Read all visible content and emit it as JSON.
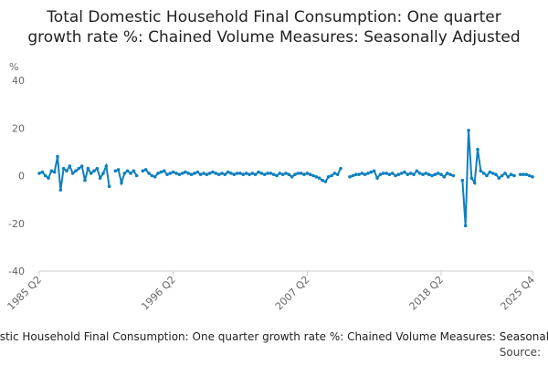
{
  "chart_data": {
    "type": "line",
    "title": "Total Domestic Household Final Consumption: One quarter growth rate %: Chained Volume Measures: Seasonally Adjusted",
    "y_label": "%",
    "footer": "Total Domestic Household Final Consumption: One quarter growth rate %: Chained Volume Measures: Seasonally Adjusted",
    "source": "Source:",
    "categories": [
      "1985 Q2",
      null,
      null,
      null,
      null,
      null,
      null,
      null,
      null,
      null,
      null,
      null,
      null,
      null,
      null,
      null,
      null,
      null,
      null,
      null,
      null,
      null,
      null,
      null,
      null,
      null,
      null,
      null,
      null,
      null,
      null,
      null,
      null,
      null,
      null,
      null,
      null,
      null,
      null,
      null,
      null,
      null,
      null,
      null,
      "1996 Q2",
      null,
      null,
      null,
      null,
      null,
      null,
      null,
      null,
      null,
      null,
      null,
      null,
      null,
      null,
      null,
      null,
      null,
      null,
      null,
      null,
      null,
      null,
      null,
      null,
      null,
      null,
      null,
      null,
      null,
      null,
      null,
      null,
      null,
      null,
      null,
      null,
      null,
      null,
      null,
      null,
      null,
      null,
      null,
      "2007 Q2",
      null,
      null,
      null,
      null,
      null,
      null,
      null,
      null,
      null,
      null,
      null,
      null,
      null,
      null,
      null,
      null,
      null,
      null,
      null,
      null,
      null,
      null,
      null,
      null,
      null,
      null,
      null,
      null,
      null,
      null,
      null,
      null,
      null,
      null,
      null,
      null,
      null,
      null,
      null,
      null,
      null,
      null,
      null,
      "2018 Q2",
      null,
      null,
      null,
      null,
      null,
      null,
      null,
      null,
      null,
      null,
      null,
      null,
      null,
      null,
      null,
      null,
      null,
      null,
      null,
      null,
      null,
      null,
      null,
      null,
      null,
      null,
      null,
      null,
      null,
      "2025 Q4"
    ],
    "series": [
      {
        "name": "Total Domestic Household Final Consumption",
        "color": "#0f7fbf",
        "values": [
          1,
          1.5,
          0,
          -1,
          2,
          1.5,
          8,
          -6,
          3,
          2,
          4,
          1,
          2,
          3,
          4,
          -2,
          3,
          1,
          2,
          3,
          -1,
          1,
          4,
          -4.5,
          null,
          2,
          2.5,
          -3,
          1,
          2,
          1,
          2,
          0,
          null,
          2,
          2.5,
          1,
          0,
          -0.5,
          1,
          1.5,
          2,
          0.5,
          1,
          1.5,
          1,
          0.5,
          1,
          1.5,
          1,
          0.5,
          1,
          1.5,
          0.5,
          1,
          0.5,
          1,
          1.5,
          1,
          0.5,
          1,
          0.5,
          1.5,
          1,
          0.5,
          1,
          1,
          0.5,
          1,
          0.5,
          1,
          0.5,
          1.5,
          1,
          0.5,
          1,
          1,
          0.5,
          0,
          1,
          0.5,
          1,
          0.5,
          -0.5,
          0.5,
          1,
          1,
          0.5,
          1,
          0.5,
          0,
          -0.5,
          -1,
          -2,
          -2.5,
          -0.5,
          0,
          1,
          0.5,
          3,
          null,
          null,
          -0.5,
          0,
          0.5,
          0.5,
          1,
          0.5,
          1,
          1.5,
          2,
          -1,
          0.5,
          1,
          1,
          0.5,
          1,
          0,
          0.5,
          1,
          1.5,
          0.5,
          1,
          0.5,
          2,
          1,
          0.5,
          1,
          0.5,
          0,
          0.5,
          1,
          0.5,
          -0.5,
          1,
          0.5,
          0,
          null,
          null,
          -2,
          -21,
          19,
          -1,
          -3,
          11,
          2,
          1,
          0,
          1.5,
          1,
          0.5,
          -1,
          0,
          1,
          -0.5,
          0.5,
          0,
          null,
          0.5,
          0.5,
          0.5,
          0,
          -0.5
        ]
      }
    ],
    "ylim": [
      -40,
      40
    ],
    "yticks": [
      -40,
      -20,
      0,
      20,
      40
    ],
    "grid": false
  }
}
